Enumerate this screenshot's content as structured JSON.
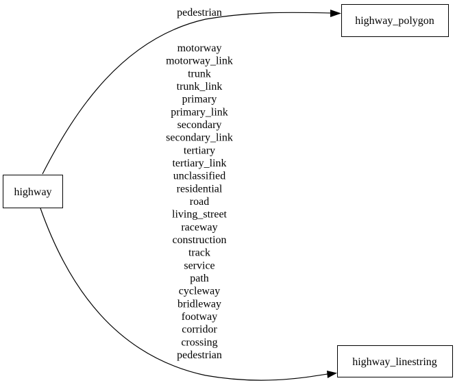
{
  "nodes": {
    "source": {
      "label": "highway"
    },
    "polygon": {
      "label": "highway_polygon"
    },
    "linestring": {
      "label": "highway_linestring"
    }
  },
  "edges": {
    "to_polygon": {
      "labels": [
        "pedestrian"
      ]
    },
    "to_linestring": {
      "labels": [
        "motorway",
        "motorway_link",
        "trunk",
        "trunk_link",
        "primary",
        "primary_link",
        "secondary",
        "secondary_link",
        "tertiary",
        "tertiary_link",
        "unclassified",
        "residential",
        "road",
        "living_street",
        "raceway",
        "construction",
        "track",
        "service",
        "path",
        "cycleway",
        "bridleway",
        "footway",
        "corridor",
        "crossing",
        "pedestrian"
      ]
    }
  },
  "colors": {
    "stroke": "#000000",
    "background": "#ffffff"
  }
}
